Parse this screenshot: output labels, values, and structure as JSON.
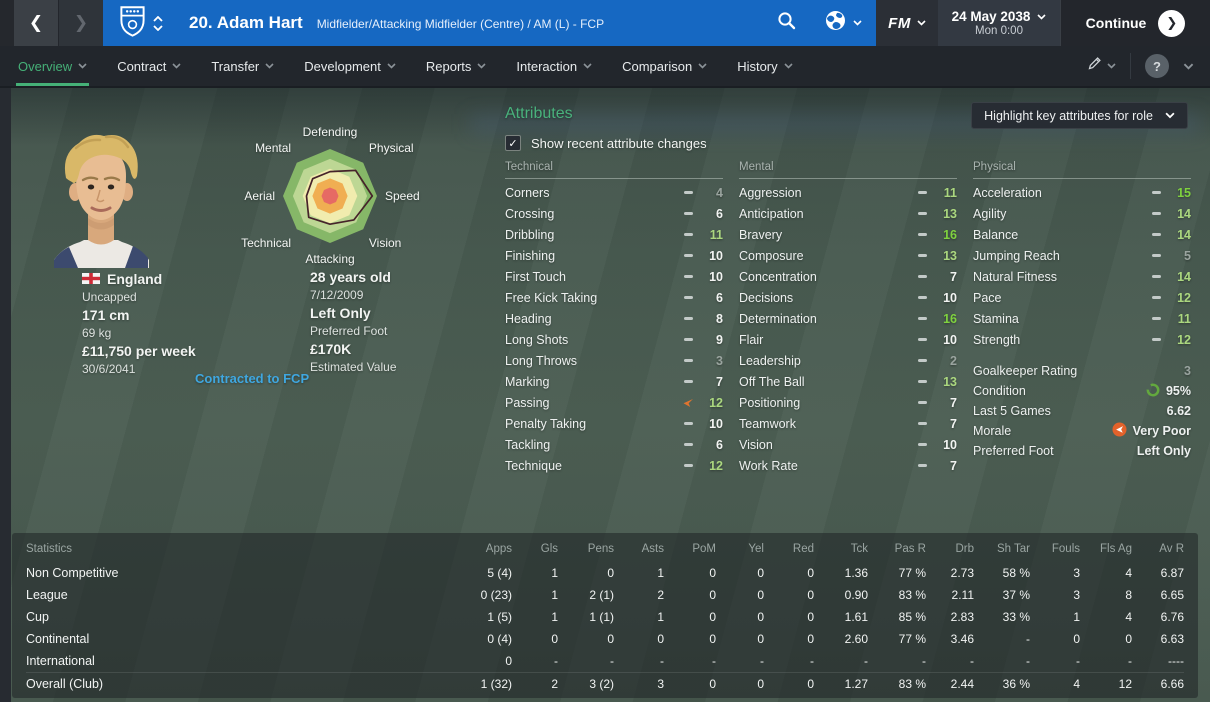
{
  "topbar": {
    "title": "20. Adam Hart",
    "subtitle": "Midfielder/Attacking Midfielder (Centre) / AM (L) - FCP",
    "fm_label": "FM",
    "date": "24 May 2038",
    "time": "Mon 0:00",
    "continue_label": "Continue"
  },
  "icons": {
    "back": "❮",
    "forward": "❯",
    "continue_arrow": "❯",
    "check": "✓",
    "question": "?"
  },
  "tabs": [
    {
      "label": "Overview",
      "active": true
    },
    {
      "label": "Contract",
      "active": false
    },
    {
      "label": "Transfer",
      "active": false
    },
    {
      "label": "Development",
      "active": false
    },
    {
      "label": "Reports",
      "active": false
    },
    {
      "label": "Interaction",
      "active": false
    },
    {
      "label": "Comparison",
      "active": false
    },
    {
      "label": "History",
      "active": false
    }
  ],
  "player": {
    "nation": "England",
    "caps": "Uncapped",
    "height": "171 cm",
    "weight": "69 kg",
    "wage": "£11,750 per week",
    "contract_end": "30/6/2041",
    "contracted_to": "Contracted to FCP",
    "age": "28 years old",
    "dob": "7/12/2009",
    "foot": "Left Only",
    "foot_label": "Preferred Foot",
    "value": "£170K",
    "value_label": "Estimated Value"
  },
  "attributes_panel": {
    "title": "Attributes",
    "show_changes_label": "Show recent attribute changes",
    "highlight_label": "Highlight key attributes for role",
    "groups": [
      {
        "name": "Technical",
        "items": [
          {
            "l": "Corners",
            "v": 4
          },
          {
            "l": "Crossing",
            "v": 6
          },
          {
            "l": "Dribbling",
            "v": 11
          },
          {
            "l": "Finishing",
            "v": 10
          },
          {
            "l": "First Touch",
            "v": 10
          },
          {
            "l": "Free Kick Taking",
            "v": 6
          },
          {
            "l": "Heading",
            "v": 8
          },
          {
            "l": "Long Shots",
            "v": 9
          },
          {
            "l": "Long Throws",
            "v": 3
          },
          {
            "l": "Marking",
            "v": 7
          },
          {
            "l": "Passing",
            "v": 12,
            "c": "down"
          },
          {
            "l": "Penalty Taking",
            "v": 10
          },
          {
            "l": "Tackling",
            "v": 6
          },
          {
            "l": "Technique",
            "v": 12
          }
        ]
      },
      {
        "name": "Mental",
        "items": [
          {
            "l": "Aggression",
            "v": 11
          },
          {
            "l": "Anticipation",
            "v": 13
          },
          {
            "l": "Bravery",
            "v": 16
          },
          {
            "l": "Composure",
            "v": 13
          },
          {
            "l": "Concentration",
            "v": 7
          },
          {
            "l": "Decisions",
            "v": 10
          },
          {
            "l": "Determination",
            "v": 16
          },
          {
            "l": "Flair",
            "v": 10
          },
          {
            "l": "Leadership",
            "v": 2
          },
          {
            "l": "Off The Ball",
            "v": 13
          },
          {
            "l": "Positioning",
            "v": 7
          },
          {
            "l": "Teamwork",
            "v": 7
          },
          {
            "l": "Vision",
            "v": 10
          },
          {
            "l": "Work Rate",
            "v": 7
          }
        ]
      },
      {
        "name": "Physical",
        "items": [
          {
            "l": "Acceleration",
            "v": 15
          },
          {
            "l": "Agility",
            "v": 14
          },
          {
            "l": "Balance",
            "v": 14
          },
          {
            "l": "Jumping Reach",
            "v": 5
          },
          {
            "l": "Natural Fitness",
            "v": 14
          },
          {
            "l": "Pace",
            "v": 12
          },
          {
            "l": "Stamina",
            "v": 11
          },
          {
            "l": "Strength",
            "v": 12
          }
        ]
      }
    ],
    "extra": [
      {
        "label": "Goalkeeper Rating",
        "value": "3",
        "dim": true
      },
      {
        "label": "Condition",
        "value": "95%",
        "icon": "condition-ring-icon"
      },
      {
        "label": "Last 5 Games",
        "value": "6.62"
      },
      {
        "label": "Morale",
        "value": "Very Poor",
        "icon": "morale-very-poor-icon"
      },
      {
        "label": "Preferred Foot",
        "value": "Left Only"
      }
    ]
  },
  "chart_data": {
    "type": "radar",
    "title": "Player attribute polygon",
    "axes": [
      "Defending",
      "Physical",
      "Speed",
      "Vision",
      "Attacking",
      "Technical",
      "Aerial",
      "Mental"
    ],
    "values_fraction": [
      0.52,
      0.77,
      0.9,
      0.72,
      0.6,
      0.64,
      0.5,
      0.52
    ],
    "rings_fraction": [
      1,
      0.79,
      0.58,
      0.375,
      0.18
    ],
    "ring_colors": [
      "#86b768",
      "#bdd794",
      "#f1ecae",
      "#f0ae52",
      "#e66a64"
    ],
    "line_color": "#46232a",
    "legend_position": "none",
    "grid": true
  },
  "stats": {
    "title": "Statistics",
    "columns": [
      "Apps",
      "Gls",
      "Pens",
      "Asts",
      "PoM",
      "Yel",
      "Red",
      "Tck",
      "Pas R",
      "Drb",
      "Sh Tar",
      "Fouls",
      "Fls Ag",
      "Av R"
    ],
    "rows": [
      {
        "label": "Non Competitive",
        "values": [
          "5 (4)",
          "1",
          "0",
          "1",
          "0",
          "0",
          "0",
          "1.36",
          "77 %",
          "2.73",
          "58 %",
          "3",
          "4",
          "6.87"
        ]
      },
      {
        "label": "League",
        "values": [
          "0 (23)",
          "1",
          "2 (1)",
          "2",
          "0",
          "0",
          "0",
          "0.90",
          "83 %",
          "2.11",
          "37 %",
          "3",
          "8",
          "6.65"
        ]
      },
      {
        "label": "Cup",
        "values": [
          "1 (5)",
          "1",
          "1 (1)",
          "1",
          "0",
          "0",
          "0",
          "1.61",
          "85 %",
          "2.83",
          "33 %",
          "1",
          "4",
          "6.76"
        ]
      },
      {
        "label": "Continental",
        "values": [
          "0 (4)",
          "0",
          "0",
          "0",
          "0",
          "0",
          "0",
          "2.60",
          "77 %",
          "3.46",
          "-",
          "0",
          "0",
          "6.63"
        ]
      },
      {
        "label": "International",
        "values": [
          "0",
          "-",
          "-",
          "-",
          "-",
          "-",
          "-",
          "-",
          "-",
          "-",
          "-",
          "-",
          "-",
          "----"
        ]
      },
      {
        "label": "Overall (Club)",
        "total": true,
        "values": [
          "1 (32)",
          "2",
          "3 (2)",
          "3",
          "0",
          "0",
          "0",
          "1.27",
          "83 %",
          "2.44",
          "36 %",
          "4",
          "12",
          "6.66"
        ]
      }
    ]
  }
}
